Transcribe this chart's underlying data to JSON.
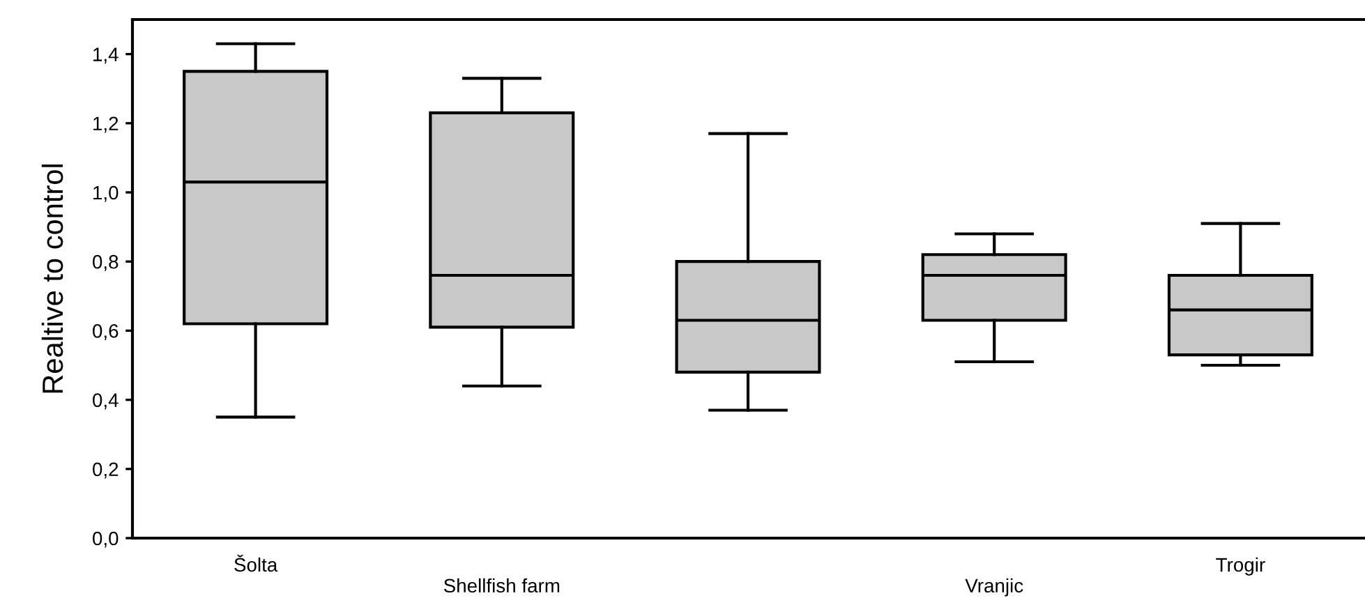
{
  "chart_data": {
    "type": "box",
    "ylabel": "Realtive to control",
    "categories": [
      "Šolta",
      "Shellfish farm",
      null,
      "Vranjic",
      "Trogir"
    ],
    "boxes": [
      {
        "low": 0.35,
        "q1": 0.62,
        "median": 1.03,
        "q3": 1.35,
        "high": 1.43
      },
      {
        "low": 0.44,
        "q1": 0.61,
        "median": 0.76,
        "q3": 1.23,
        "high": 1.33
      },
      {
        "low": 0.37,
        "q1": 0.48,
        "median": 0.63,
        "q3": 0.8,
        "high": 1.17
      },
      {
        "low": 0.51,
        "q1": 0.63,
        "median": 0.76,
        "q3": 0.82,
        "high": 0.88
      },
      {
        "low": 0.5,
        "q1": 0.53,
        "median": 0.66,
        "q3": 0.76,
        "high": 0.91
      }
    ],
    "color": "#c8c8c8",
    "ylim": [
      0,
      1.5
    ],
    "yticks": [
      {
        "value": 0,
        "label": "0,0"
      },
      {
        "value": 0.2,
        "label": "0,2"
      },
      {
        "value": 0.4,
        "label": "0,4"
      },
      {
        "value": 0.6,
        "label": "0,6"
      },
      {
        "value": 0.8,
        "label": "0,8"
      },
      {
        "value": 1.0,
        "label": "1,0"
      },
      {
        "value": 1.2,
        "label": "1,2"
      },
      {
        "value": 1.4,
        "label": "1,4"
      }
    ],
    "grid": false,
    "legend": false
  }
}
